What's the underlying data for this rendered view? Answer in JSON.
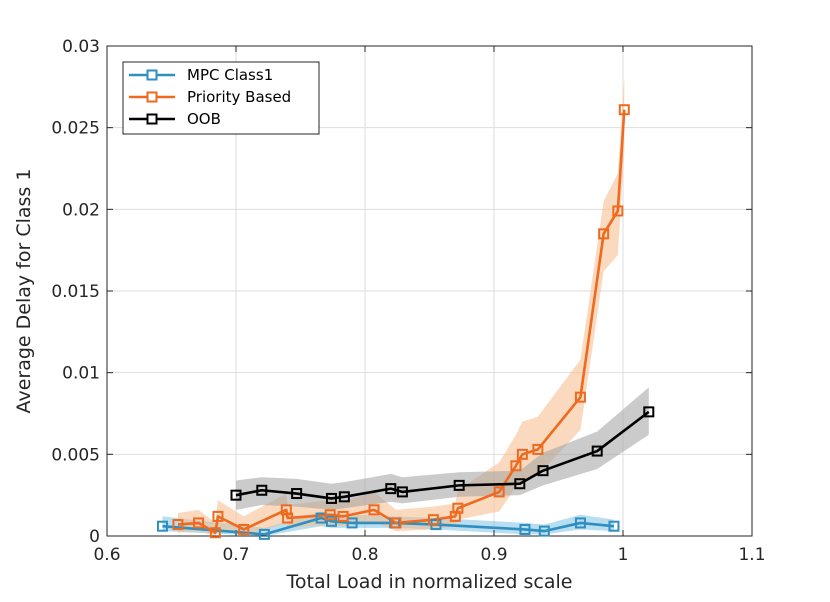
{
  "chart_data": {
    "type": "line",
    "xlabel": "Total Load in normalized scale",
    "ylabel": "Average Delay for Class 1",
    "xlim": [
      0.6,
      1.1
    ],
    "ylim": [
      0,
      0.03
    ],
    "x_ticks": [
      0.6,
      0.7,
      0.8,
      0.9,
      1,
      1.1
    ],
    "x_tick_labels": [
      "0.6",
      "0.7",
      "0.8",
      "0.9",
      "1",
      "1.1"
    ],
    "y_ticks": [
      0,
      0.005,
      0.01,
      0.015,
      0.02,
      0.025,
      0.03
    ],
    "y_tick_labels": [
      "0",
      "0.005",
      "0.01",
      "0.015",
      "0.02",
      "0.025",
      "0.03"
    ],
    "grid": true,
    "legend_position": "top-left",
    "series": [
      {
        "name": "MPC Class1",
        "color": "#2e8fc0",
        "band_color": "#7ec3e3",
        "x": [
          0.643,
          0.722,
          0.766,
          0.774,
          0.79,
          0.823,
          0.855,
          0.924,
          0.939,
          0.967,
          0.993
        ],
        "y": [
          0.0006,
          0.0001,
          0.0011,
          0.0009,
          0.0008,
          0.0008,
          0.0007,
          0.0004,
          0.0003,
          0.0008,
          0.0006
        ],
        "band_low": [
          0.0003,
          0.0,
          0.0006,
          0.0005,
          0.0005,
          0.0005,
          0.0004,
          0.0001,
          0.0001,
          0.0004,
          0.0003
        ],
        "band_high": [
          0.0012,
          0.0005,
          0.0015,
          0.0014,
          0.0013,
          0.0012,
          0.0011,
          0.0008,
          0.0007,
          0.0013,
          0.001
        ]
      },
      {
        "name": "Priority Based",
        "color": "#ee6a1e",
        "band_color": "#f6b98a",
        "x": [
          0.655,
          0.671,
          0.684,
          0.686,
          0.706,
          0.739,
          0.74,
          0.773,
          0.783,
          0.807,
          0.824,
          0.853,
          0.87,
          0.872,
          0.904,
          0.917,
          0.922,
          0.934,
          0.967,
          0.985,
          0.996,
          1.001
        ],
        "y": [
          0.0007,
          0.0008,
          0.0002,
          0.0012,
          0.0004,
          0.0016,
          0.0011,
          0.0013,
          0.0012,
          0.0016,
          0.0008,
          0.001,
          0.0012,
          0.0017,
          0.0027,
          0.0043,
          0.005,
          0.0053,
          0.0085,
          0.0185,
          0.0199,
          0.0261
        ],
        "band_low": [
          0.0002,
          0.0003,
          0.0,
          0.0004,
          0.0,
          0.0008,
          0.0005,
          0.0007,
          0.0006,
          0.0009,
          0.0003,
          0.0004,
          0.0006,
          0.001,
          0.0015,
          0.003,
          0.0034,
          0.0037,
          0.0065,
          0.0162,
          0.0172,
          0.0235
        ],
        "band_high": [
          0.0014,
          0.0016,
          0.0008,
          0.0022,
          0.0012,
          0.0026,
          0.0019,
          0.0022,
          0.0021,
          0.0027,
          0.0016,
          0.0018,
          0.002,
          0.0028,
          0.0045,
          0.0062,
          0.007,
          0.0073,
          0.0108,
          0.0205,
          0.0222,
          0.0281
        ]
      },
      {
        "name": "OOB",
        "color": "#000000",
        "band_color": "#a0a0a0",
        "x": [
          0.7,
          0.72,
          0.747,
          0.774,
          0.784,
          0.82,
          0.829,
          0.873,
          0.92,
          0.938,
          0.98,
          1.02
        ],
        "y": [
          0.0025,
          0.0028,
          0.0026,
          0.0023,
          0.0024,
          0.0029,
          0.0027,
          0.0031,
          0.0032,
          0.004,
          0.0052,
          0.0076
        ],
        "band_low": [
          0.0016,
          0.0019,
          0.0018,
          0.0016,
          0.0017,
          0.0021,
          0.002,
          0.0024,
          0.0025,
          0.0031,
          0.0041,
          0.0062
        ],
        "band_high": [
          0.0034,
          0.0036,
          0.0035,
          0.0032,
          0.0033,
          0.0038,
          0.0036,
          0.0039,
          0.004,
          0.0051,
          0.0064,
          0.0091
        ]
      }
    ]
  }
}
